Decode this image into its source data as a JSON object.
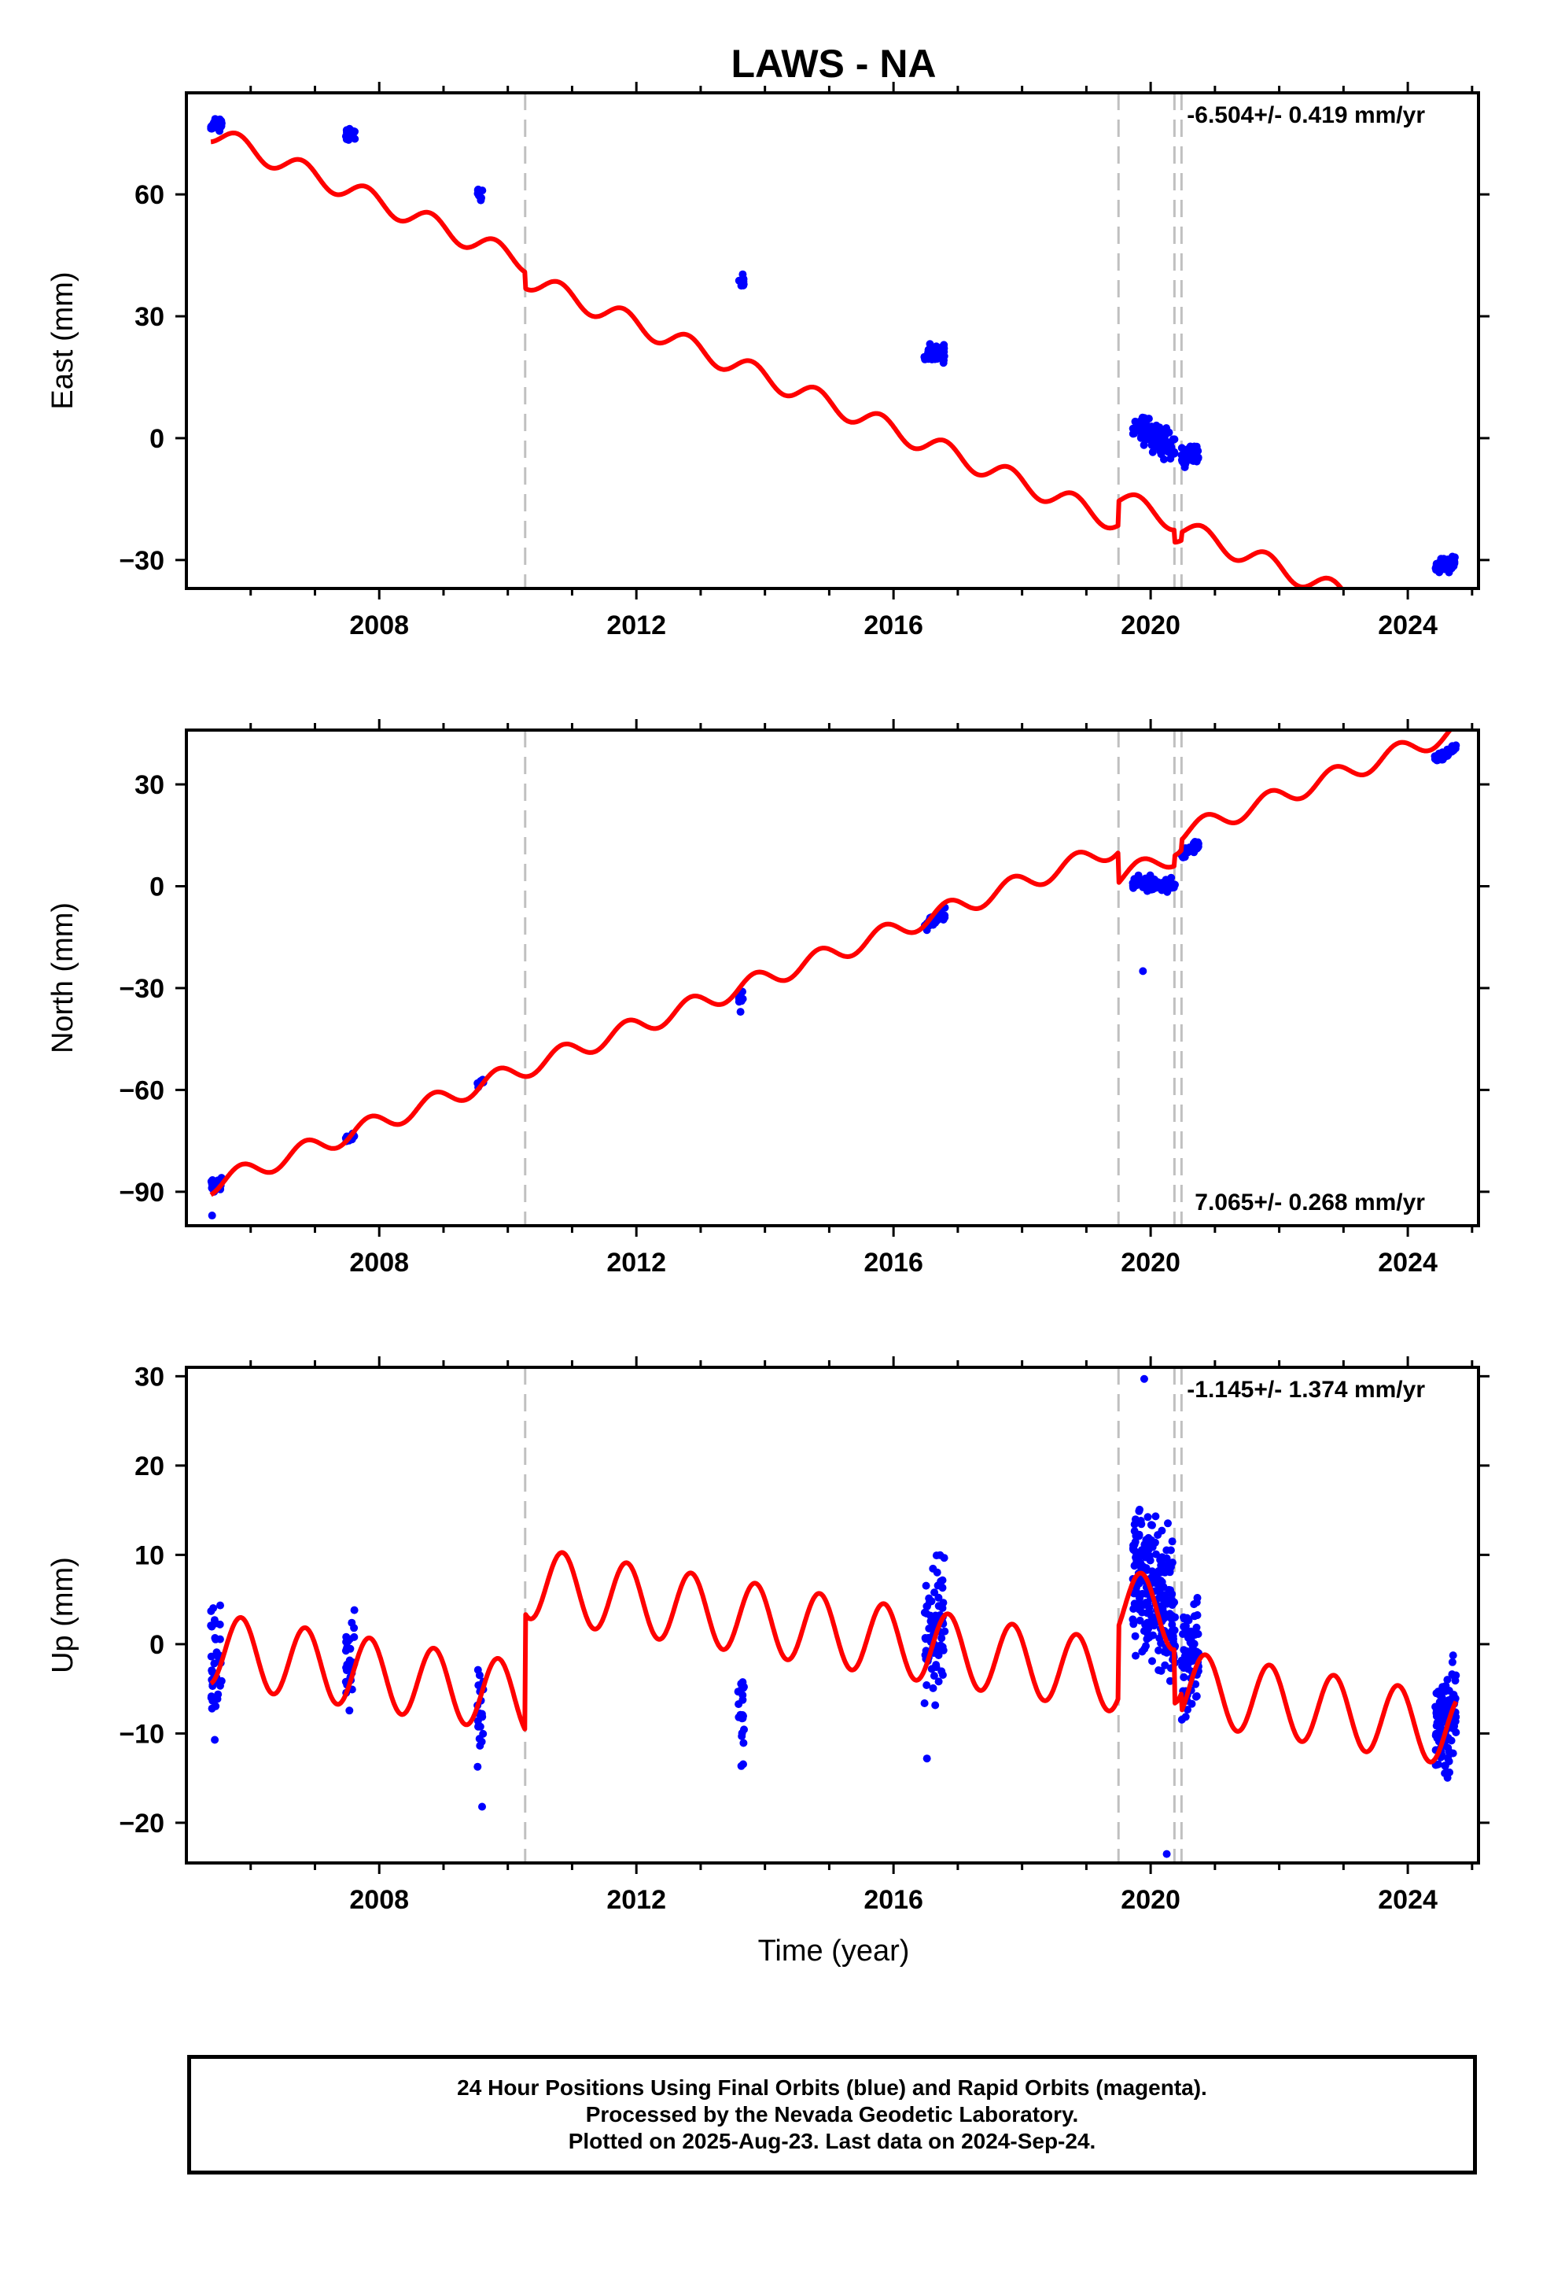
{
  "title": "LAWS - NA",
  "xlabel": "Time (year)",
  "colors": {
    "data": "#0000ff",
    "model": "#ff0000",
    "offset_line": "#c0c0c0",
    "axis": "#000000"
  },
  "footer": {
    "line1": "24 Hour Positions Using Final Orbits (blue) and Rapid Orbits (magenta).",
    "line2": "Processed by the Nevada Geodetic Laboratory.",
    "line3": "Plotted on 2025-Aug-23. Last data on 2024-Sep-24."
  },
  "chart_data": [
    {
      "type": "scatter",
      "ylabel": "East (mm)",
      "rate_label": "-6.504+/- 0.419 mm/yr",
      "xlim": [
        2005.0,
        2025.1
      ],
      "ylim": [
        -37,
        85
      ],
      "x_ticks": [
        2008,
        2012,
        2016,
        2020,
        2024
      ],
      "y_ticks": [
        -30,
        0,
        30,
        60
      ],
      "offset_lines": [
        2010.27,
        2019.5,
        2020.37,
        2020.48
      ],
      "model": {
        "rate": -6.504,
        "ref_year": 2005.4,
        "ref_value": 75,
        "annual_amplitude": 2.5,
        "annual_phase": 2005.55,
        "steps": [
          {
            "year": 2010.27,
            "value": -4
          },
          {
            "year": 2019.5,
            "value": 6
          },
          {
            "year": 2020.37,
            "value": -3
          },
          {
            "year": 2020.48,
            "value": 2
          }
        ]
      },
      "clusters": [
        {
          "start": 2005.38,
          "end": 2005.55,
          "center": 77,
          "spread": 6,
          "count": 25
        },
        {
          "start": 2007.48,
          "end": 2007.62,
          "center": 75,
          "spread": 6,
          "count": 20
        },
        {
          "start": 2009.52,
          "end": 2009.62,
          "center": 60,
          "spread": 5,
          "count": 12
        },
        {
          "start": 2013.58,
          "end": 2013.68,
          "center": 39,
          "spread": 6,
          "count": 10
        },
        {
          "start": 2016.48,
          "end": 2016.8,
          "center": 21,
          "spread": 7,
          "count": 45
        },
        {
          "start": 2019.72,
          "end": 2020.38,
          "center": 0,
          "spread": 10,
          "count": 110
        },
        {
          "start": 2020.48,
          "end": 2020.75,
          "center": -4,
          "spread": 7,
          "count": 45
        },
        {
          "start": 2024.42,
          "end": 2024.75,
          "center": -31,
          "spread": 6,
          "count": 55
        }
      ]
    },
    {
      "type": "scatter",
      "ylabel": "North (mm)",
      "rate_label": "7.065+/- 0.268 mm/yr",
      "xlim": [
        2005.0,
        2025.1
      ],
      "ylim": [
        -100,
        46
      ],
      "x_ticks": [
        2008,
        2012,
        2016,
        2020,
        2024
      ],
      "y_ticks": [
        -90,
        -60,
        -30,
        0,
        30
      ],
      "offset_lines": [
        2010.27,
        2019.5,
        2020.37,
        2020.48
      ],
      "model": {
        "rate": 7.065,
        "ref_year": 2005.4,
        "ref_value": -88,
        "annual_amplitude": 2.8,
        "annual_phase": 2005.6,
        "steps": [
          {
            "year": 2019.5,
            "value": -9
          },
          {
            "year": 2020.37,
            "value": 3
          },
          {
            "year": 2020.48,
            "value": 3
          }
        ]
      },
      "clusters": [
        {
          "start": 2005.38,
          "end": 2005.55,
          "center": -88,
          "spread": 6,
          "count": 22
        },
        {
          "start": 2007.48,
          "end": 2007.62,
          "center": -74,
          "spread": 5,
          "count": 16
        },
        {
          "start": 2009.52,
          "end": 2009.62,
          "center": -58,
          "spread": 4,
          "count": 10
        },
        {
          "start": 2013.58,
          "end": 2013.68,
          "center": -33,
          "spread": 5,
          "count": 8
        },
        {
          "start": 2016.48,
          "end": 2016.8,
          "center": -10,
          "spread": 5,
          "count": 40
        },
        {
          "start": 2019.72,
          "end": 2020.38,
          "center": 1,
          "spread": 6,
          "count": 100
        },
        {
          "start": 2020.48,
          "end": 2020.75,
          "center": 11,
          "spread": 4,
          "count": 40
        },
        {
          "start": 2024.42,
          "end": 2024.75,
          "center": 39,
          "spread": 4,
          "count": 55
        }
      ],
      "outliers": [
        {
          "x": 2005.4,
          "y": -97
        },
        {
          "x": 2019.88,
          "y": -25
        },
        {
          "x": 2013.62,
          "y": -37
        }
      ]
    },
    {
      "type": "scatter",
      "ylabel": "Up (mm)",
      "rate_label": "-1.145+/- 1.374 mm/yr",
      "xlim": [
        2005.0,
        2025.1
      ],
      "ylim": [
        -24.5,
        31
      ],
      "x_ticks": [
        2008,
        2012,
        2016,
        2020,
        2024
      ],
      "y_ticks": [
        -20,
        -10,
        0,
        10,
        20,
        30
      ],
      "offset_lines": [
        2010.27,
        2019.5,
        2020.37,
        2020.48
      ],
      "model": {
        "rate": -1.145,
        "ref_year": 2005.4,
        "ref_value": -0.5,
        "annual_amplitude": 4,
        "annual_phase": 2005.6,
        "steps": [
          {
            "year": 2010.27,
            "value": 13
          },
          {
            "year": 2019.5,
            "value": 8
          },
          {
            "year": 2020.37,
            "value": -6
          },
          {
            "year": 2020.48,
            "value": -2
          }
        ]
      },
      "clusters": [
        {
          "start": 2005.38,
          "end": 2005.55,
          "center": -2,
          "spread": 20,
          "count": 40
        },
        {
          "start": 2007.48,
          "end": 2007.62,
          "center": -1,
          "spread": 16,
          "count": 30
        },
        {
          "start": 2009.52,
          "end": 2009.62,
          "center": -8,
          "spread": 20,
          "count": 22
        },
        {
          "start": 2013.58,
          "end": 2013.68,
          "center": -8,
          "spread": 16,
          "count": 22
        },
        {
          "start": 2016.48,
          "end": 2016.8,
          "center": 2,
          "spread": 20,
          "count": 80
        },
        {
          "start": 2019.72,
          "end": 2020.38,
          "center": 6,
          "spread": 24,
          "count": 220
        },
        {
          "start": 2020.48,
          "end": 2020.75,
          "center": -1,
          "spread": 18,
          "count": 70
        },
        {
          "start": 2024.42,
          "end": 2024.75,
          "center": -9,
          "spread": 18,
          "count": 110
        }
      ],
      "outliers": [
        {
          "x": 2019.9,
          "y": 29.7
        },
        {
          "x": 2020.25,
          "y": -23.5
        },
        {
          "x": 2016.52,
          "y": -12.8
        },
        {
          "x": 2009.6,
          "y": -18.2
        }
      ]
    }
  ]
}
